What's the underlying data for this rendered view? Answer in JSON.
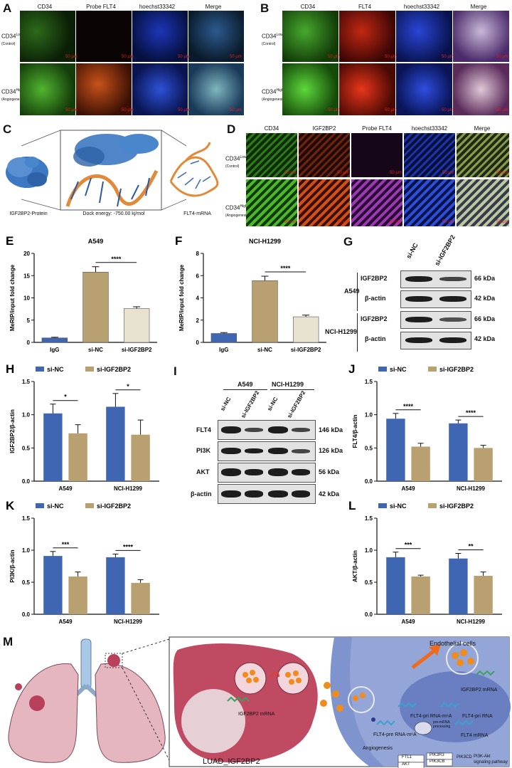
{
  "panels": {
    "A": {
      "letter": "A",
      "columns": [
        "CD34",
        "Probe FLT4",
        "hoechst33342",
        "Merge"
      ],
      "rows": [
        {
          "main": "CD34",
          "sup": "Low",
          "sub": "(Control)"
        },
        {
          "main": "CD34",
          "sup": "High",
          "sub": "(Angiogenesis)"
        }
      ],
      "scale": "50 μm"
    },
    "B": {
      "letter": "B",
      "columns": [
        "CD34",
        "FLT4",
        "hoechst33342",
        "Merge"
      ],
      "rows": [
        {
          "main": "CD34",
          "sup": "Low",
          "sub": "(Control)"
        },
        {
          "main": "CD34",
          "sup": "High",
          "sub": "(Angiogenesis)"
        }
      ],
      "scale": "50 μm"
    },
    "C": {
      "letter": "C",
      "labels": [
        "IGF2BP2-Protein",
        "Dock  energy: -750.00 kj/mol",
        "FLT4-mRNA"
      ]
    },
    "D": {
      "letter": "D",
      "columns": [
        "CD34",
        "IGF2BP2",
        "Probe FLT4",
        "hoechst33342",
        "Merge"
      ],
      "rows": [
        {
          "main": "CD34",
          "sup": "Low",
          "sub": "(Control)"
        },
        {
          "main": "CD34",
          "sup": "High",
          "sub": "(Angiogenesis)"
        }
      ],
      "scale": "50 μm"
    },
    "G": {
      "letter": "G",
      "lanes": [
        "si-NC",
        "si-IGF2BP2"
      ],
      "groups": [
        {
          "cell": "A549",
          "rows": [
            {
              "protein": "IGF2BP2",
              "kda": "66 kDa"
            },
            {
              "protein": "β-actin",
              "kda": "42 kDa"
            }
          ]
        },
        {
          "cell": "NCI-H1299",
          "rows": [
            {
              "protein": "IGF2BP2",
              "kda": "66 kDa"
            },
            {
              "protein": "β-actin",
              "kda": "42 kDa"
            }
          ]
        }
      ]
    },
    "I": {
      "letter": "I",
      "cells": [
        "A549",
        "NCI-H1299"
      ],
      "lanes": [
        "si-NC",
        "si-IGF2BP2",
        "si-NC",
        "si-IGF2BP2"
      ],
      "rows": [
        {
          "protein": "FLT4",
          "kda": "146 kDa"
        },
        {
          "protein": "PI3K",
          "kda": "126 kDa"
        },
        {
          "protein": "AKT",
          "kda": "56 kDa"
        },
        {
          "protein": "β-actin",
          "kda": "42 kDa"
        }
      ]
    },
    "M": {
      "letter": "M",
      "endothelial": "Endothelial cells",
      "tumor": "LUAD_IGF2BP2",
      "mrna1": "IGF2BP2 mRNA",
      "mrna2": "IGF2BP2 mRNA",
      "flt4_pri_m6a": "FLT4-pri RNA-m⁶A",
      "flt4_pri": "FLT4-pri RNA",
      "flt4_pre": "FLT4-pre RNA-m⁶A",
      "pre_proc": "pre-mRNA processing",
      "flt4_mrna": "FLT4 mRNA",
      "ftl1": "FTL1",
      "akt": "AKT",
      "pik3r3": "PIK3R3",
      "pik3cb": "PIK3CB",
      "pik3cd": "PIK3CD",
      "angio": "Angiogenesis",
      "pathway1": "PI3K-Akt",
      "pathway2": "signaling pathway"
    }
  },
  "chart_data": [
    {
      "id": "E",
      "letter": "E",
      "type": "bar",
      "title": "A549",
      "ylabel": "MeRIP/input fold change",
      "categories": [
        "IgG",
        "si-NC",
        "si-IGF2BP2"
      ],
      "values": [
        1.0,
        15.8,
        7.6
      ],
      "errors": [
        0.15,
        1.2,
        0.4
      ],
      "colors": [
        "#3f66b3",
        "#b9a071",
        "#e8e3d0"
      ],
      "ylim": [
        0,
        20
      ],
      "yticks": [
        0,
        5,
        10,
        15,
        20
      ],
      "sig": [
        {
          "a": 1,
          "b": 2,
          "label": "****"
        }
      ]
    },
    {
      "id": "F",
      "letter": "F",
      "type": "bar",
      "title": "NCI-H1299",
      "ylabel": "MeRIP/input fold change",
      "categories": [
        "IgG",
        "si-NC",
        "si-IGF2BP2"
      ],
      "values": [
        0.8,
        5.55,
        2.3
      ],
      "errors": [
        0.08,
        0.4,
        0.15
      ],
      "colors": [
        "#3f66b3",
        "#b9a071",
        "#e8e3d0"
      ],
      "ylim": [
        0,
        8
      ],
      "yticks": [
        0,
        2,
        4,
        6,
        8
      ],
      "sig": [
        {
          "a": 1,
          "b": 2,
          "label": "****"
        }
      ]
    },
    {
      "id": "H",
      "letter": "H",
      "type": "bar",
      "ylabel": "IGF2BP2/β-actin",
      "legend": [
        "si-NC",
        "si-IGF2BP2"
      ],
      "categories": [
        "A549",
        "NCI-H1299"
      ],
      "series": [
        {
          "name": "si-NC",
          "values": [
            1.02,
            1.12
          ],
          "errors": [
            0.14,
            0.2
          ]
        },
        {
          "name": "si-IGF2BP2",
          "values": [
            0.72,
            0.7
          ],
          "errors": [
            0.13,
            0.22
          ]
        }
      ],
      "ylim": [
        0,
        1.5
      ],
      "yticks": [
        0.0,
        0.5,
        1.0,
        1.5
      ],
      "sig": [
        "*",
        "*"
      ]
    },
    {
      "id": "J",
      "letter": "J",
      "type": "bar",
      "ylabel": "FLT4/β-actin",
      "legend": [
        "si-NC",
        "si-IGF2BP2"
      ],
      "categories": [
        "A549",
        "NCI-H1299"
      ],
      "series": [
        {
          "name": "si-NC",
          "values": [
            0.94,
            0.87
          ],
          "errors": [
            0.08,
            0.05
          ]
        },
        {
          "name": "si-IGF2BP2",
          "values": [
            0.52,
            0.5
          ],
          "errors": [
            0.05,
            0.04
          ]
        }
      ],
      "ylim": [
        0,
        1.5
      ],
      "yticks": [
        0.0,
        0.5,
        1.0,
        1.5
      ],
      "sig": [
        "****",
        "****"
      ]
    },
    {
      "id": "K",
      "letter": "K",
      "type": "bar",
      "ylabel": "PI3K/β-actin",
      "legend": [
        "si-NC",
        "si-IGF2BP2"
      ],
      "categories": [
        "A549",
        "NCI-H1299"
      ],
      "series": [
        {
          "name": "si-NC",
          "values": [
            0.91,
            0.89
          ],
          "errors": [
            0.07,
            0.05
          ]
        },
        {
          "name": "si-IGF2BP2",
          "values": [
            0.59,
            0.49
          ],
          "errors": [
            0.07,
            0.05
          ]
        }
      ],
      "ylim": [
        0,
        1.5
      ],
      "yticks": [
        0.0,
        0.5,
        1.0,
        1.5
      ],
      "sig": [
        "***",
        "****"
      ]
    },
    {
      "id": "L",
      "letter": "L",
      "type": "bar",
      "ylabel": "AKT/β-actin",
      "legend": [
        "si-NC",
        "si-IGF2BP2"
      ],
      "categories": [
        "A549",
        "NCI-H1299"
      ],
      "series": [
        {
          "name": "si-NC",
          "values": [
            0.89,
            0.87
          ],
          "errors": [
            0.08,
            0.08
          ]
        },
        {
          "name": "si-IGF2BP2",
          "values": [
            0.59,
            0.6
          ],
          "errors": [
            0.02,
            0.06
          ]
        }
      ],
      "ylim": [
        0,
        1.5
      ],
      "yticks": [
        0.0,
        0.5,
        1.0,
        1.5
      ],
      "sig": [
        "***",
        "**"
      ]
    }
  ]
}
